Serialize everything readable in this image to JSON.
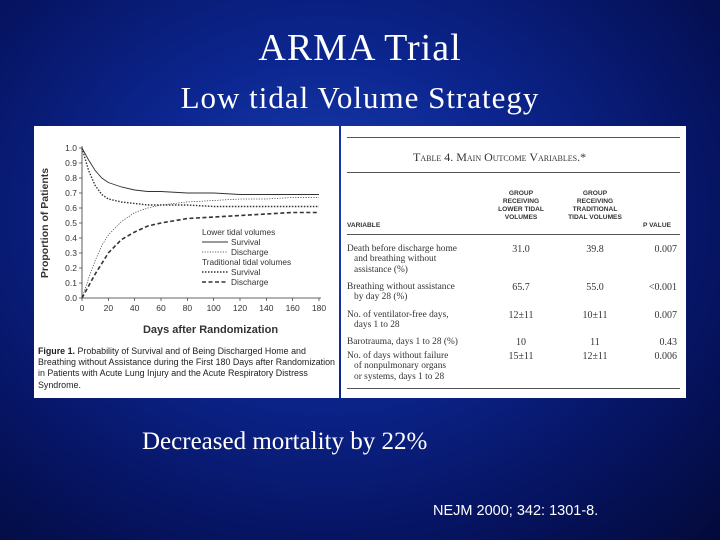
{
  "slide": {
    "title": "ARMA Trial",
    "subtitle": "Low tidal Volume Strategy",
    "statement": "Decreased mortality by 22%",
    "citation": "NEJM 2000; 342: 1301-8."
  },
  "figure": {
    "caption_label": "Figure 1.",
    "caption_text": "Probability of Survival and of Being Discharged Home and Breathing without Assistance during the First 180 Days after Randomization in Patients with Acute Lung Injury and the Acute Respiratory Distress Syndrome."
  },
  "chart_data": {
    "type": "line",
    "title": "",
    "xlabel": "Days after Randomization",
    "ylabel": "Proportion of Patients",
    "xlim": [
      0,
      180
    ],
    "ylim": [
      0,
      1.0
    ],
    "x_ticks": [
      0,
      20,
      40,
      60,
      80,
      100,
      120,
      140,
      160,
      180
    ],
    "y_ticks": [
      0.0,
      0.1,
      0.2,
      0.3,
      0.4,
      0.5,
      0.6,
      0.7,
      0.8,
      0.9,
      1.0
    ],
    "y_tick_labels": [
      "0.0",
      "0.1",
      "0.2",
      "0.3",
      "0.4",
      "0.5",
      "0.6",
      "0.7",
      "0.8",
      "0.9",
      "1.0"
    ],
    "grid": false,
    "legend_position": "bottom-right",
    "legend": {
      "group1_title": "Lower tidal volumes",
      "group1_items": [
        "Survival",
        "Discharge"
      ],
      "group2_title": "Traditional tidal volumes",
      "group2_items": [
        "Survival",
        "Discharge"
      ]
    },
    "series": [
      {
        "name": "Lower tidal volumes Survival",
        "style": "solid-thin",
        "x": [
          0,
          5,
          10,
          15,
          20,
          30,
          40,
          50,
          60,
          80,
          100,
          120,
          140,
          160,
          180
        ],
        "y": [
          1.0,
          0.92,
          0.85,
          0.8,
          0.77,
          0.74,
          0.72,
          0.71,
          0.71,
          0.7,
          0.7,
          0.69,
          0.69,
          0.69,
          0.69
        ]
      },
      {
        "name": "Lower tidal volumes Discharge",
        "style": "dotted-thin",
        "x": [
          0,
          5,
          10,
          15,
          20,
          30,
          40,
          50,
          60,
          80,
          100,
          120,
          140,
          160,
          180
        ],
        "y": [
          0.0,
          0.13,
          0.25,
          0.35,
          0.42,
          0.51,
          0.57,
          0.6,
          0.62,
          0.64,
          0.65,
          0.66,
          0.66,
          0.67,
          0.67
        ]
      },
      {
        "name": "Traditional tidal volumes Survival",
        "style": "dotted-bold",
        "x": [
          0,
          5,
          10,
          15,
          20,
          30,
          40,
          50,
          60,
          80,
          100,
          120,
          140,
          160,
          180
        ],
        "y": [
          1.0,
          0.85,
          0.75,
          0.69,
          0.66,
          0.64,
          0.63,
          0.62,
          0.62,
          0.62,
          0.61,
          0.61,
          0.61,
          0.61,
          0.61
        ]
      },
      {
        "name": "Traditional tidal volumes Discharge",
        "style": "dashed-bold",
        "x": [
          0,
          5,
          10,
          15,
          20,
          30,
          40,
          50,
          60,
          80,
          100,
          120,
          140,
          160,
          180
        ],
        "y": [
          0.0,
          0.08,
          0.16,
          0.23,
          0.3,
          0.39,
          0.44,
          0.48,
          0.5,
          0.53,
          0.54,
          0.55,
          0.56,
          0.57,
          0.57
        ]
      }
    ]
  },
  "table": {
    "title": "Table 4. Main Outcome Variables.*",
    "headers": {
      "variable": "Variable",
      "lower": [
        "Group",
        "Receiving",
        "Lower Tidal",
        "Volumes"
      ],
      "traditional": [
        "Group",
        "Receiving",
        "Traditional",
        "Tidal Volumes"
      ],
      "p": "P Value"
    },
    "rows": [
      {
        "label": [
          "Death before discharge home",
          "and breathing without",
          "assistance (%)"
        ],
        "lower": "31.0",
        "traditional": "39.8",
        "p": "0.007"
      },
      {
        "label": [
          "Breathing without assistance",
          "by day 28 (%)"
        ],
        "lower": "65.7",
        "traditional": "55.0",
        "p": "<0.001"
      },
      {
        "label": [
          "No. of ventilator-free days,",
          "days 1 to 28"
        ],
        "lower": "12±11",
        "traditional": "10±11",
        "p": "0.007"
      },
      {
        "label": [
          "Barotrauma, days 1 to 28 (%)"
        ],
        "lower": "10",
        "traditional": "11",
        "p": "0.43"
      },
      {
        "label": [
          "No. of days without failure",
          "of nonpulmonary organs",
          "or systems, days 1 to 28"
        ],
        "lower": "15±11",
        "traditional": "12±11",
        "p": "0.006"
      }
    ]
  }
}
